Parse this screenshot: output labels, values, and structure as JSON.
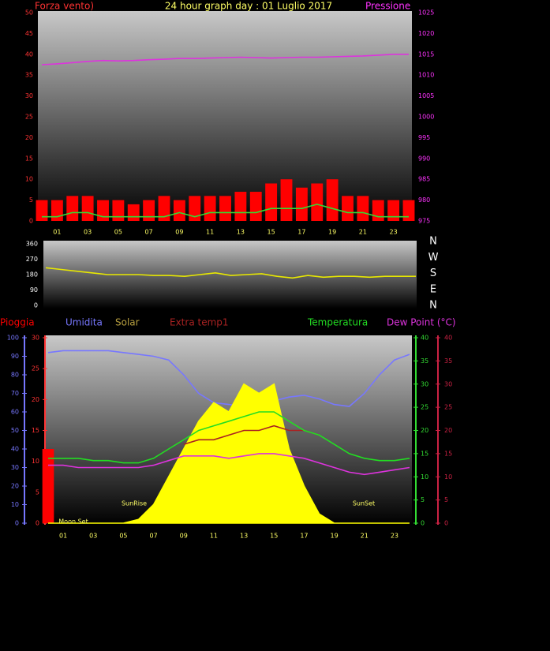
{
  "chart_data": [
    {
      "type": "line",
      "title": "24 hour graph day : 01 Luglio 2017",
      "ylabel": "Forza vento)",
      "y2label": "Pressione",
      "x": [
        0,
        1,
        2,
        3,
        4,
        5,
        6,
        7,
        8,
        9,
        10,
        11,
        12,
        13,
        14,
        15,
        16,
        17,
        18,
        19,
        20,
        21,
        22,
        23,
        24
      ],
      "xlim": [
        0,
        24
      ],
      "xticks": [
        {
          "value": 1,
          "label": "01"
        },
        {
          "value": 3,
          "label": "03"
        },
        {
          "value": 5,
          "label": "05"
        },
        {
          "value": 7,
          "label": "07"
        },
        {
          "value": 9,
          "label": "09"
        },
        {
          "value": 11,
          "label": "11"
        },
        {
          "value": 13,
          "label": "13"
        },
        {
          "value": 15,
          "label": "15"
        },
        {
          "value": 17,
          "label": "17"
        },
        {
          "value": 19,
          "label": "19"
        },
        {
          "value": 21,
          "label": "21"
        },
        {
          "value": 23,
          "label": "23"
        }
      ],
      "ylim": [
        0,
        50
      ],
      "yticks": [
        0,
        5,
        10,
        15,
        20,
        25,
        30,
        35,
        40,
        45,
        50
      ],
      "y2lim": [
        975,
        1025
      ],
      "y2ticks": [
        975,
        980,
        985,
        990,
        995,
        1000,
        1005,
        1010,
        1015,
        1020,
        1025
      ],
      "axis_colors": {
        "y": "#ff3333",
        "y2": "#ff33ff"
      },
      "series": [
        {
          "color": "#ff0000",
          "style": "bar",
          "axis": "y",
          "values": [
            5,
            5,
            6,
            6,
            5,
            5,
            4,
            5,
            6,
            5,
            6,
            6,
            6,
            7,
            7,
            9,
            10,
            8,
            9,
            10,
            6,
            6,
            5,
            5,
            5
          ]
        },
        {
          "color": "#33dd33",
          "style": "line",
          "axis": "y",
          "values": [
            1,
            1,
            2,
            2,
            1,
            1,
            1,
            1,
            1,
            2,
            1,
            2,
            2,
            2,
            2,
            3,
            3,
            3,
            4,
            3,
            2,
            2,
            1,
            1,
            1
          ]
        },
        {
          "color": "#dd33dd",
          "style": "line",
          "axis": "y2",
          "values": [
            1012.5,
            1012.7,
            1013,
            1013.3,
            1013.5,
            1013.4,
            1013.5,
            1013.7,
            1013.8,
            1014,
            1014,
            1014.1,
            1014.2,
            1014.3,
            1014.2,
            1014.1,
            1014.2,
            1014.3,
            1014.3,
            1014.4,
            1014.5,
            1014.6,
            1014.8,
            1015,
            1015
          ]
        }
      ]
    },
    {
      "type": "line",
      "x": [
        0,
        1,
        2,
        3,
        4,
        5,
        6,
        7,
        8,
        9,
        10,
        11,
        12,
        13,
        14,
        15,
        16,
        17,
        18,
        19,
        20,
        21,
        22,
        23,
        24
      ],
      "xlim": [
        0,
        24
      ],
      "ylim": [
        0,
        360
      ],
      "yticks": [
        0,
        90,
        180,
        270,
        360
      ],
      "compass": [
        "N",
        "W",
        "S",
        "E",
        "N"
      ],
      "axis_colors": {
        "y": "#ffffff"
      },
      "series": [
        {
          "color": "#e8e800",
          "style": "line",
          "axis": "y",
          "values": [
            220,
            210,
            200,
            190,
            180,
            180,
            180,
            175,
            175,
            170,
            180,
            190,
            175,
            180,
            185,
            170,
            160,
            175,
            165,
            170,
            170,
            165,
            170,
            170,
            170
          ]
        }
      ]
    },
    {
      "type": "line",
      "x": [
        0,
        1,
        2,
        3,
        4,
        5,
        6,
        7,
        8,
        9,
        10,
        11,
        12,
        13,
        14,
        15,
        16,
        17,
        18,
        19,
        20,
        21,
        22,
        23,
        24
      ],
      "xlim": [
        0,
        24
      ],
      "xticks": [
        {
          "value": 1,
          "label": "01"
        },
        {
          "value": 3,
          "label": "03"
        },
        {
          "value": 5,
          "label": "05"
        },
        {
          "value": 7,
          "label": "07"
        },
        {
          "value": 9,
          "label": "09"
        },
        {
          "value": 11,
          "label": "11"
        },
        {
          "value": 13,
          "label": "13"
        },
        {
          "value": 15,
          "label": "15"
        },
        {
          "value": 17,
          "label": "17"
        },
        {
          "value": 19,
          "label": "19"
        },
        {
          "value": 21,
          "label": "21"
        },
        {
          "value": 23,
          "label": "23"
        }
      ],
      "ylim": [
        0,
        100
      ],
      "yticks": [
        0,
        10,
        20,
        30,
        40,
        50,
        60,
        70,
        80,
        90,
        100
      ],
      "y3lim": [
        0,
        30
      ],
      "y3ticks": [
        0,
        5,
        10,
        15,
        20,
        25,
        30
      ],
      "y2lim": [
        0,
        40
      ],
      "y2ticks": [
        0,
        5,
        10,
        15,
        20,
        25,
        30,
        35,
        40
      ],
      "y4lim": [
        0,
        40
      ],
      "y4ticks": [
        0,
        5,
        10,
        15,
        20,
        25,
        30,
        35,
        40
      ],
      "axis_colors": {
        "y": "#7777ff",
        "y3": "#ff3333",
        "y2": "#33dd33",
        "y4": "#cc2244"
      },
      "annotations": [
        "SunRise",
        "SunSet",
        "Moon Set"
      ],
      "series": [
        {
          "name": "Pioggia",
          "color": "#ff0000",
          "style": "bar",
          "axis": "y3",
          "values": [
            12,
            0,
            0,
            0,
            0,
            0,
            0,
            0,
            0,
            0,
            0,
            0,
            0,
            0,
            0,
            0,
            0,
            0,
            0,
            0,
            0,
            0,
            0,
            0,
            0
          ]
        },
        {
          "name": "Umidita",
          "color": "#7777ff",
          "style": "line",
          "axis": "y",
          "values": [
            92,
            93,
            93,
            93,
            93,
            92,
            91,
            90,
            88,
            80,
            70,
            65,
            64,
            63,
            65,
            66,
            68,
            69,
            67,
            64,
            63,
            70,
            80,
            88,
            91
          ]
        },
        {
          "name": "Solar",
          "color": "#ffff00",
          "style": "area",
          "axis": "y",
          "values": [
            0,
            0,
            0,
            0,
            0,
            0,
            2,
            10,
            25,
            40,
            55,
            65,
            60,
            75,
            70,
            75,
            40,
            20,
            5,
            0,
            0,
            0,
            0,
            0,
            0
          ]
        },
        {
          "name": "Extra temp1",
          "color": "#aa2222",
          "style": "line",
          "axis": "y2",
          "values": [
            null,
            null,
            null,
            null,
            null,
            null,
            null,
            null,
            null,
            17,
            18,
            18,
            19,
            20,
            20,
            21,
            20,
            20,
            19,
            null,
            null,
            null,
            null,
            null,
            null
          ]
        },
        {
          "name": "Temperatura",
          "color": "#22dd22",
          "style": "line",
          "axis": "y2",
          "values": [
            14,
            14,
            14,
            13.5,
            13.5,
            13,
            13,
            14,
            16,
            18,
            20,
            21,
            22,
            23,
            24,
            24,
            22,
            20,
            19,
            17,
            15,
            14,
            13.5,
            13.5,
            14
          ]
        },
        {
          "name": "Dew Point (°C)",
          "color": "#dd33dd",
          "style": "line",
          "axis": "y2",
          "values": [
            12.5,
            12.5,
            12,
            12,
            12,
            12,
            12,
            12.5,
            13.5,
            14.5,
            14.5,
            14.5,
            14,
            14.5,
            15,
            15,
            14.5,
            14,
            13,
            12,
            11,
            10.5,
            11,
            11.5,
            12
          ]
        }
      ]
    }
  ]
}
